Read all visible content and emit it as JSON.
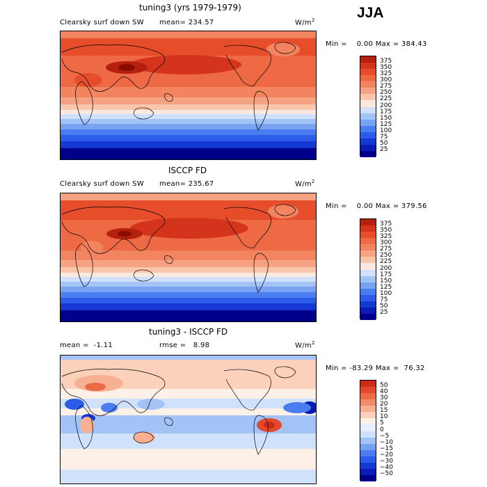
{
  "season": "JJA",
  "colors": {
    "abs_levels": [
      "#00008a",
      "#0a1cb4",
      "#1538d4",
      "#2d5de8",
      "#4a7df0",
      "#7aa2f2",
      "#a3c3f7",
      "#cfe1fb",
      "#fbe9e0",
      "#f8c6aa",
      "#f6a383",
      "#f28560",
      "#ee6a45",
      "#e54d2b",
      "#d4341c",
      "#b4200e",
      "#8a0a00"
    ],
    "diff_levels": [
      "#00008a",
      "#0a1cb4",
      "#1538d4",
      "#2d5de8",
      "#4a7df0",
      "#7aa2f2",
      "#a3c3f7",
      "#cfe1fb",
      "#e6efff",
      "#fdf0e6",
      "#fbd1bb",
      "#f8b092",
      "#f28b68",
      "#ec6a45",
      "#e14a2c",
      "#c92c17",
      "#9d1008",
      "#7a0000"
    ]
  },
  "chart_data": [
    {
      "type": "heatmap",
      "title": "tuning3 (yrs 1979-1979)",
      "variable": "Clearsky surf down SW",
      "mean_label": "mean=",
      "mean": "234.57",
      "units": "W/m",
      "units_sup": "2",
      "min_label": "Min =",
      "min": "0.00",
      "max_label": "Max =",
      "max": "384.43",
      "colorbar_ticks": [
        "375",
        "350",
        "325",
        "300",
        "275",
        "250",
        "225",
        "200",
        "175",
        "150",
        "125",
        "100",
        "75",
        "50",
        "25"
      ]
    },
    {
      "type": "heatmap",
      "title": "ISCCP FD",
      "variable": "Clearsky surf down SW",
      "mean_label": "mean=",
      "mean": "235.67",
      "units": "W/m",
      "units_sup": "2",
      "min_label": "Min =",
      "min": "0.00",
      "max_label": "Max =",
      "max": "379.56",
      "colorbar_ticks": [
        "375",
        "350",
        "325",
        "300",
        "275",
        "250",
        "225",
        "200",
        "175",
        "150",
        "125",
        "100",
        "75",
        "50",
        "25"
      ]
    },
    {
      "type": "heatmap",
      "title": "tuning3 - ISCCP FD",
      "mean_label": "mean =",
      "mean": "-1.11",
      "rmse_label": "rmse =",
      "rmse": "8.98",
      "units": "W/m",
      "units_sup": "2",
      "min_label": "Min =",
      "min": "-83.29",
      "max_label": "Max =",
      "max": "76.32",
      "colorbar_ticks": [
        "50",
        "40",
        "30",
        "20",
        "15",
        "10",
        "5",
        "0",
        "−5",
        "−10",
        "−15",
        "−20",
        "−30",
        "−40",
        "−50"
      ]
    }
  ]
}
